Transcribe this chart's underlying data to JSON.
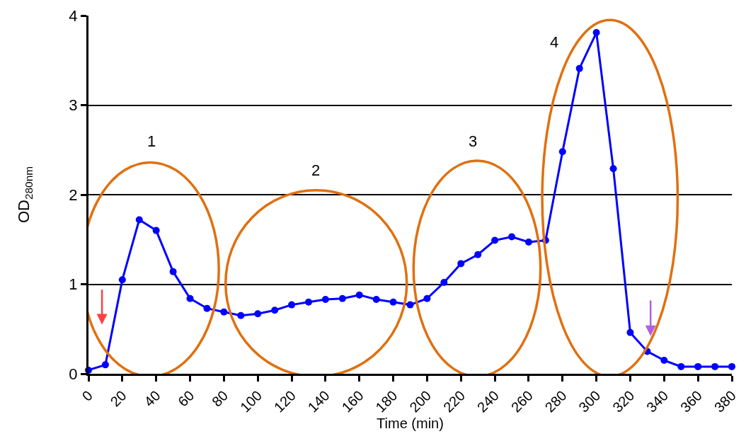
{
  "chart_data": {
    "type": "line",
    "xlabel": "Time (min)",
    "ylabel": "OD$_{280nm}$",
    "x": [
      0,
      10,
      20,
      30,
      40,
      50,
      60,
      70,
      80,
      90,
      100,
      110,
      120,
      130,
      140,
      150,
      160,
      170,
      180,
      190,
      200,
      210,
      220,
      230,
      240,
      250,
      260,
      270,
      280,
      290,
      300,
      310,
      320,
      330,
      340,
      350,
      360,
      370,
      380
    ],
    "series": [
      {
        "color": "#0000ff",
        "values": [
          0.04,
          0.1,
          1.05,
          1.72,
          1.6,
          1.14,
          0.84,
          0.73,
          0.69,
          0.65,
          0.67,
          0.71,
          0.77,
          0.8,
          0.83,
          0.84,
          0.88,
          0.83,
          0.8,
          0.77,
          0.84,
          1.02,
          1.23,
          1.33,
          1.49,
          1.53,
          1.47,
          1.49,
          2.48,
          3.41,
          3.81,
          2.29,
          0.46,
          0.25,
          0.15,
          0.08,
          0.08,
          0.08,
          0.08
        ]
      }
    ],
    "xlim": [
      0,
      380
    ],
    "xticks": [
      0,
      20,
      40,
      60,
      80,
      100,
      120,
      140,
      160,
      180,
      200,
      220,
      240,
      260,
      280,
      300,
      320,
      340,
      360,
      380
    ],
    "ylim": [
      0,
      4
    ],
    "yticks": [
      0,
      1,
      2,
      3,
      4
    ],
    "grid": "y",
    "marker": "circle",
    "line_style": "solid",
    "annotations": [
      "1",
      "2",
      "3",
      "4"
    ]
  }
}
